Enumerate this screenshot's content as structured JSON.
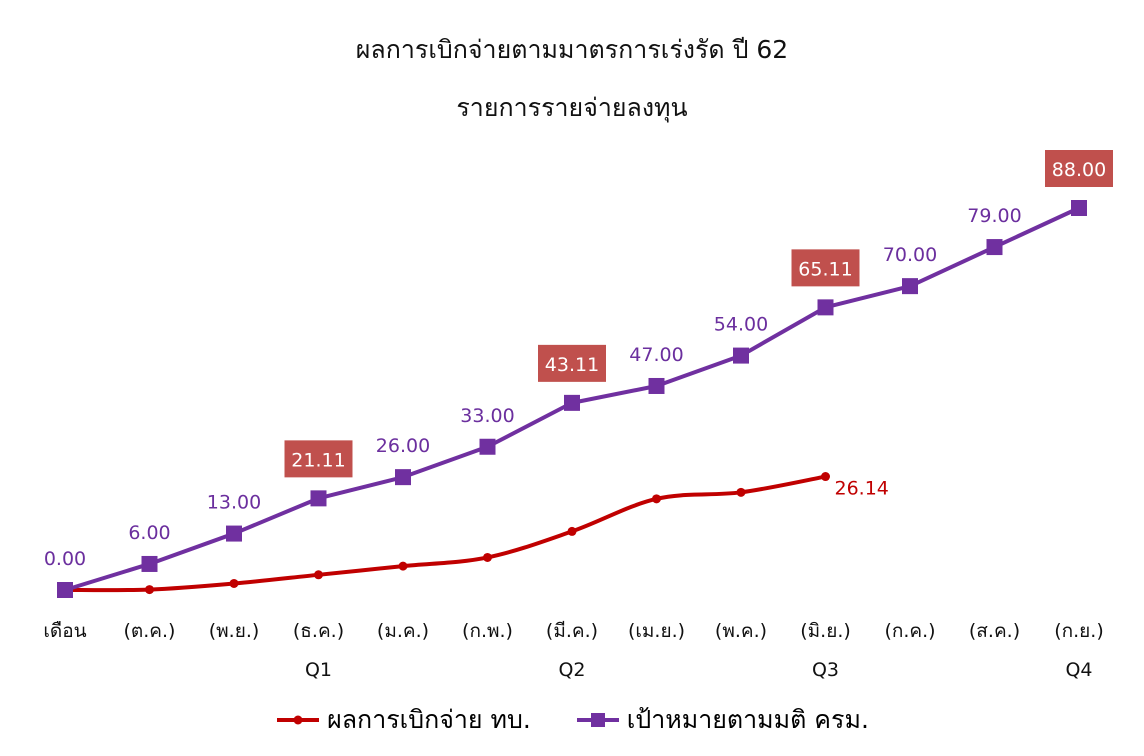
{
  "title": "ผลการเบิกจ่ายตามมาตรการเร่งรัด ปี 62",
  "subtitle": "รายการรายจ่ายลงทุน",
  "colors": {
    "target": "#7030a0",
    "actual": "#c00000",
    "highlight_box": "#c0504d"
  },
  "chart_data": {
    "type": "line",
    "categories": [
      "เดือน",
      "(ต.ค.)",
      "(พ.ย.)",
      "(ธ.ค.)",
      "(ม.ค.)",
      "(ก.พ.)",
      "(มี.ค.)",
      "(เม.ย.)",
      "(พ.ค.)",
      "(มิ.ย.)",
      "(ก.ค.)",
      "(ส.ค.)",
      "(ก.ย.)"
    ],
    "quarters": [
      {
        "label": "Q1",
        "category_index": 3
      },
      {
        "label": "Q2",
        "category_index": 6
      },
      {
        "label": "Q3",
        "category_index": 9
      },
      {
        "label": "Q4",
        "category_index": 12
      }
    ],
    "series": [
      {
        "name": "เป้าหมายตามมติ ครม.",
        "color": "#7030a0",
        "marker": "square",
        "values": [
          0.0,
          6.0,
          13.0,
          21.11,
          26.0,
          33.0,
          43.11,
          47.0,
          54.0,
          65.11,
          70.0,
          79.0,
          88.0
        ],
        "labels": [
          "0.00",
          "6.00",
          "13.00",
          "21.11",
          "26.00",
          "33.00",
          "43.11",
          "47.00",
          "54.00",
          "65.11",
          "70.00",
          "79.00",
          "88.00"
        ],
        "highlighted_indices": [
          3,
          6,
          9,
          12
        ]
      },
      {
        "name": "ผลการเบิกจ่าย ทบ.",
        "color": "#c00000",
        "marker": "circle",
        "smooth": true,
        "values": [
          0.0,
          0.1,
          1.5,
          3.5,
          5.5,
          7.5,
          13.5,
          21.0,
          22.5,
          26.14,
          null,
          null,
          null
        ],
        "labels": [
          null,
          null,
          null,
          null,
          null,
          null,
          null,
          null,
          null,
          "26.14",
          null,
          null,
          null
        ]
      }
    ],
    "ylim": [
      0,
      88
    ],
    "grid": false,
    "legend_position": "bottom"
  },
  "legend": [
    {
      "label": "ผลการเบิกจ่าย ทบ.",
      "key": "actual"
    },
    {
      "label": "เป้าหมายตามมติ ครม.",
      "key": "target"
    }
  ]
}
